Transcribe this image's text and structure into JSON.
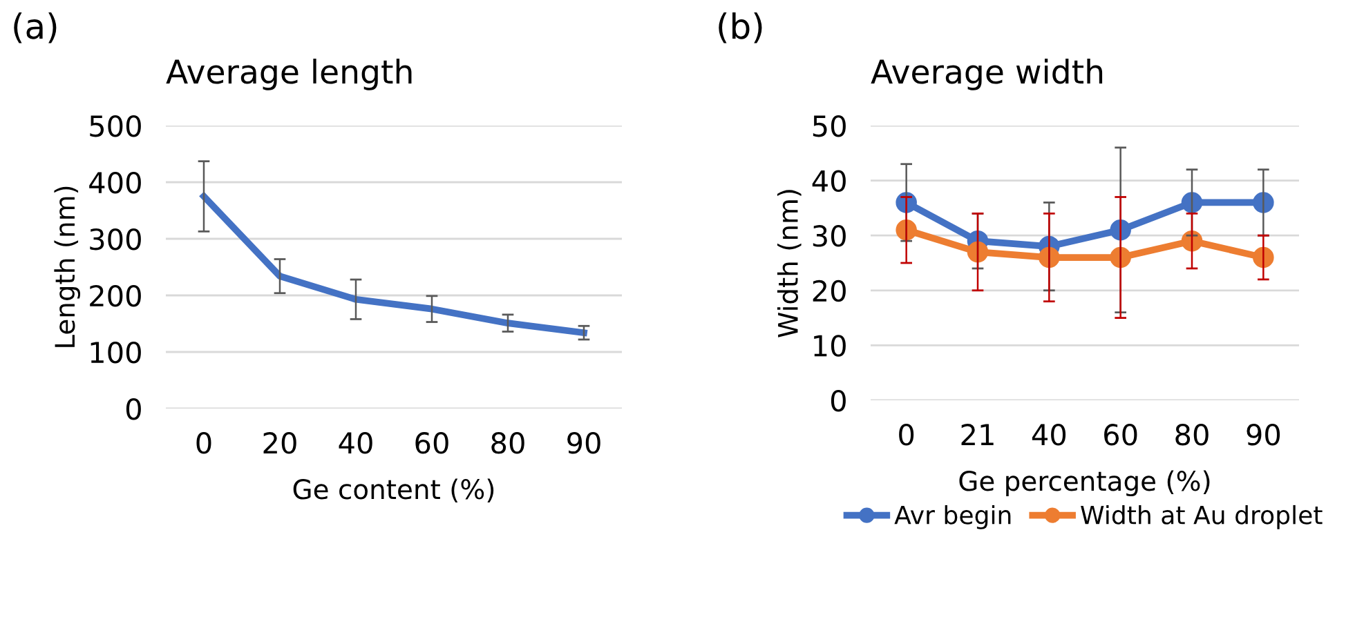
{
  "chart_data": [
    {
      "type": "line",
      "title": "Average length",
      "xlabel": "Ge content (%)",
      "ylabel": "Length (nm)",
      "annotations": [
        "(a)"
      ],
      "categories": [
        "0",
        "20",
        "40",
        "60",
        "80",
        "90"
      ],
      "series": [
        {
          "color": "#4472c4",
          "values": [
            375,
            234,
            193,
            176,
            151,
            134
          ],
          "errors": [
            62,
            30,
            35,
            23,
            15,
            12
          ]
        }
      ],
      "ylim": [
        0,
        500
      ],
      "yticks": [
        0,
        100,
        200,
        300,
        400,
        500
      ],
      "grid": "y",
      "marker": "none",
      "legend": false
    },
    {
      "type": "line",
      "title": "Average width",
      "xlabel": "Ge percentage (%)",
      "ylabel": "Width (nm)",
      "annotations": [
        "(b)"
      ],
      "categories": [
        "0",
        "21",
        "40",
        "60",
        "80",
        "90"
      ],
      "series": [
        {
          "name": "Avr begin",
          "color": "#4472c4",
          "values": [
            36,
            29,
            28,
            31,
            36,
            36
          ],
          "errors": [
            7,
            5,
            8,
            15,
            6,
            6
          ]
        },
        {
          "name": "Width at Au droplet",
          "color": "#ed7d31",
          "values": [
            31,
            27,
            26,
            26,
            29,
            26
          ],
          "errors": [
            6,
            7,
            8,
            11,
            5,
            4
          ]
        }
      ],
      "ylim": [
        0,
        50
      ],
      "yticks": [
        0,
        10,
        20,
        30,
        40,
        50
      ],
      "grid": "y",
      "marker": "circle",
      "legend": "bottom"
    }
  ]
}
